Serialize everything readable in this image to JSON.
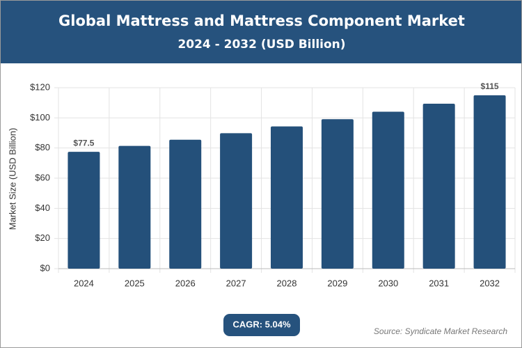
{
  "chart_data": {
    "type": "bar",
    "title": "Global Mattress and Mattress Component Market",
    "subtitle": "2024 - 2032 (USD Billion)",
    "y_label": "Market Size (USD Billion)",
    "categories": [
      "2024",
      "2025",
      "2026",
      "2027",
      "2028",
      "2029",
      "2030",
      "2031",
      "2032"
    ],
    "values": [
      77.5,
      81.4,
      85.5,
      89.8,
      94.3,
      99.1,
      104.1,
      109.4,
      115
    ],
    "value_labels": [
      "$77.5",
      null,
      null,
      null,
      null,
      null,
      null,
      null,
      "$115"
    ],
    "color": "#24507a",
    "ylim": [
      0,
      120
    ],
    "yticks": [
      {
        "value": 0,
        "label": "$0"
      },
      {
        "value": 20,
        "label": "$20"
      },
      {
        "value": 40,
        "label": "$40"
      },
      {
        "value": 60,
        "label": "$60"
      },
      {
        "value": 80,
        "label": "$80"
      },
      {
        "value": 100,
        "label": "$100"
      },
      {
        "value": 120,
        "label": "$120"
      }
    ],
    "grid": true,
    "annotation": "CAGR: 5.04%",
    "source": "Source: Syndicate Market Research"
  }
}
